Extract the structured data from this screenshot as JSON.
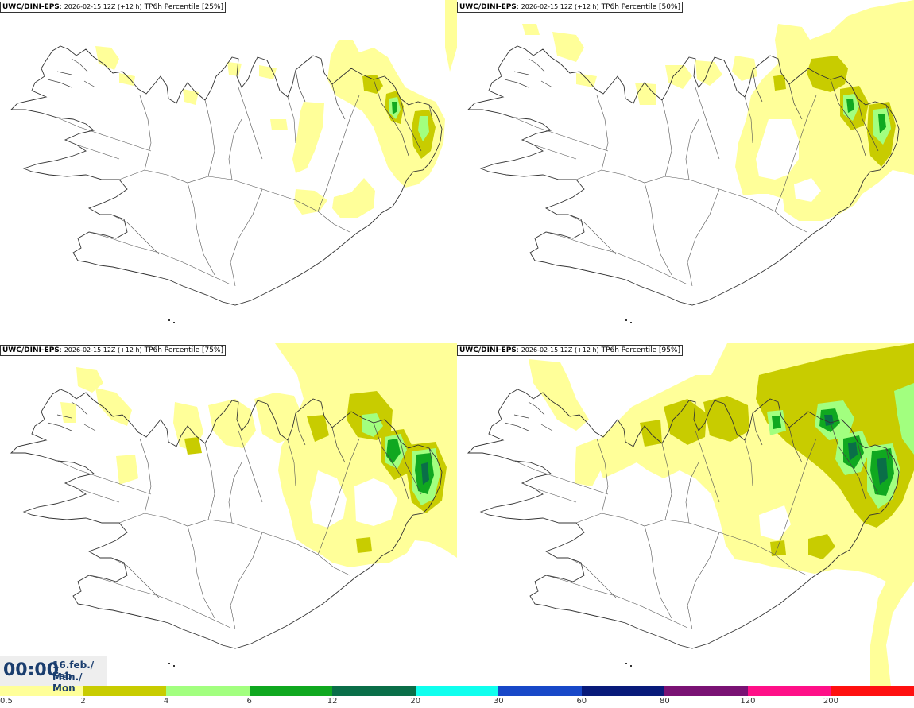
{
  "panels": [
    {
      "model": "UWC/DINI-EPS",
      "run": "2026-02-15 12Z (+12 h)",
      "product": "TP6h Percentile [25%]"
    },
    {
      "model": "UWC/DINI-EPS",
      "run": "2026-02-15 12Z (+12 h)",
      "product": "TP6h Percentile [50%]"
    },
    {
      "model": "UWC/DINI-EPS",
      "run": "2026-02-15 12Z (+12 h)",
      "product": "TP6h Percentile [75%]"
    },
    {
      "model": "UWC/DINI-EPS",
      "run": "2026-02-15 12Z (+12 h)",
      "product": "TP6h Percentile [95%]"
    }
  ],
  "valid_time": {
    "time": "00:00",
    "date": "16.feb./ Feb",
    "day": "Mán./ Mon"
  },
  "legend": {
    "colors": [
      "#ffff99",
      "#c8cc00",
      "#a2ff7f",
      "#10a820",
      "#0a6e48",
      "#10ffee",
      "#1848c8",
      "#081a7a",
      "#7a1274",
      "#ff1088",
      "#ff1010"
    ],
    "labels": [
      "0.5",
      "2",
      "4",
      "6",
      "12",
      "20",
      "30",
      "60",
      "80",
      "120",
      "200"
    ]
  }
}
